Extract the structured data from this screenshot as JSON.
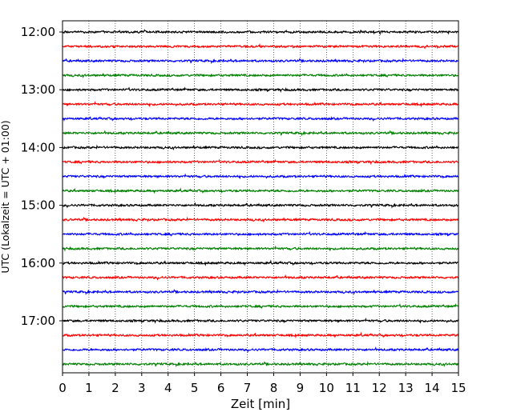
{
  "chart_data": {
    "type": "line",
    "title": "",
    "xlabel": "Zeit  [min]",
    "ylabel": "UTC (Lokalzeit = UTC + 01:00)",
    "xlim": [
      0,
      15
    ],
    "x_ticks": [
      0,
      1,
      2,
      3,
      4,
      5,
      6,
      7,
      8,
      9,
      10,
      11,
      12,
      13,
      14,
      15
    ],
    "x_tick_labels": [
      "0",
      "1",
      "2",
      "3",
      "4",
      "5",
      "6",
      "7",
      "8",
      "9",
      "10",
      "11",
      "12",
      "13",
      "14",
      "15"
    ],
    "y_tick_labels": [
      "12:00",
      "13:00",
      "14:00",
      "15:00",
      "16:00",
      "17:00"
    ],
    "grid": "vertical dotted",
    "trace_interval_minutes": 15,
    "start_time": "12:00",
    "traces_count": 24,
    "colors": [
      "#000000",
      "#ff0000",
      "#0000ff",
      "#008000"
    ]
  }
}
